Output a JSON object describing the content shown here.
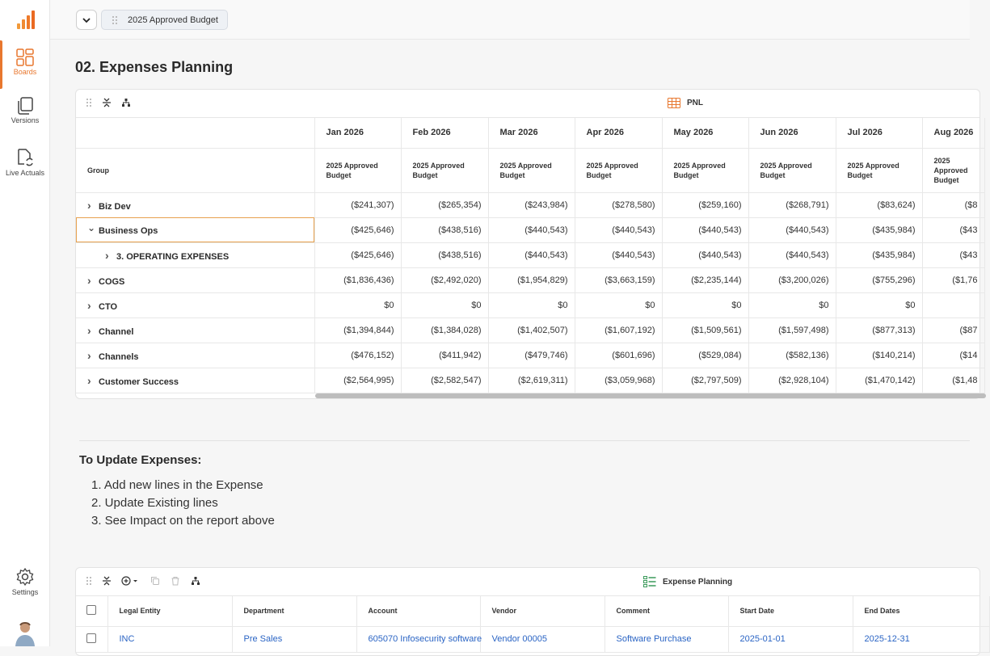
{
  "sidebar": {
    "items": [
      {
        "label": "Boards",
        "icon": "boards-icon",
        "active": true
      },
      {
        "label": "Versions",
        "icon": "versions-icon"
      },
      {
        "label": "Live Actuals",
        "icon": "live-actuals-icon"
      }
    ],
    "settings_label": "Settings",
    "accent": "#e8772e"
  },
  "topbar": {
    "tab_label": "2025 Approved Budget"
  },
  "page_title": "02. Expenses Planning",
  "pnl": {
    "title": "PNL",
    "group_header": "Group",
    "sub_header": "2025 Approved Budget",
    "months": [
      "Jan 2026",
      "Feb 2026",
      "Mar 2026",
      "Apr 2026",
      "May 2026",
      "Jun 2026",
      "Jul 2026",
      "Aug 2026"
    ],
    "rows": [
      {
        "label": "Biz Dev",
        "values": [
          "($241,307)",
          "($265,354)",
          "($243,984)",
          "($278,580)",
          "($259,160)",
          "($268,791)",
          "($83,624)",
          "($8"
        ]
      },
      {
        "label": "Business Ops",
        "expanded": true,
        "values": [
          "($425,646)",
          "($438,516)",
          "($440,543)",
          "($440,543)",
          "($440,543)",
          "($440,543)",
          "($435,984)",
          "($43"
        ]
      },
      {
        "label": "3. OPERATING EXPENSES",
        "sub": true,
        "values": [
          "($425,646)",
          "($438,516)",
          "($440,543)",
          "($440,543)",
          "($440,543)",
          "($440,543)",
          "($435,984)",
          "($43"
        ]
      },
      {
        "label": "COGS",
        "values": [
          "($1,836,436)",
          "($2,492,020)",
          "($1,954,829)",
          "($3,663,159)",
          "($2,235,144)",
          "($3,200,026)",
          "($755,296)",
          "($1,76"
        ]
      },
      {
        "label": "CTO",
        "values": [
          "$0",
          "$0",
          "$0",
          "$0",
          "$0",
          "$0",
          "$0",
          ""
        ]
      },
      {
        "label": "Channel",
        "values": [
          "($1,394,844)",
          "($1,384,028)",
          "($1,402,507)",
          "($1,607,192)",
          "($1,509,561)",
          "($1,597,498)",
          "($877,313)",
          "($87"
        ]
      },
      {
        "label": "Channels",
        "values": [
          "($476,152)",
          "($411,942)",
          "($479,746)",
          "($601,696)",
          "($529,084)",
          "($582,136)",
          "($140,214)",
          "($14"
        ]
      },
      {
        "label": "Customer Success",
        "values": [
          "($2,564,995)",
          "($2,582,547)",
          "($2,619,311)",
          "($3,059,968)",
          "($2,797,509)",
          "($2,928,104)",
          "($1,470,142)",
          "($1,48"
        ]
      }
    ]
  },
  "instructions": {
    "title": "To Update Expenses:",
    "steps": [
      "1. Add new lines in the Expense",
      "2. Update Existing lines",
      "3. See Impact on the report above"
    ]
  },
  "expense": {
    "title": "Expense Planning",
    "columns": [
      "Legal Entity",
      "Department",
      "Account",
      "Vendor",
      "Comment",
      "Start Date",
      "End Dates"
    ],
    "rows": [
      [
        "INC",
        "Pre Sales",
        "605070 Infosecurity software",
        "Vendor 00005",
        "Software Purchase",
        "2025-01-01",
        "2025-12-31"
      ]
    ],
    "link_color": "#2a64c4"
  }
}
